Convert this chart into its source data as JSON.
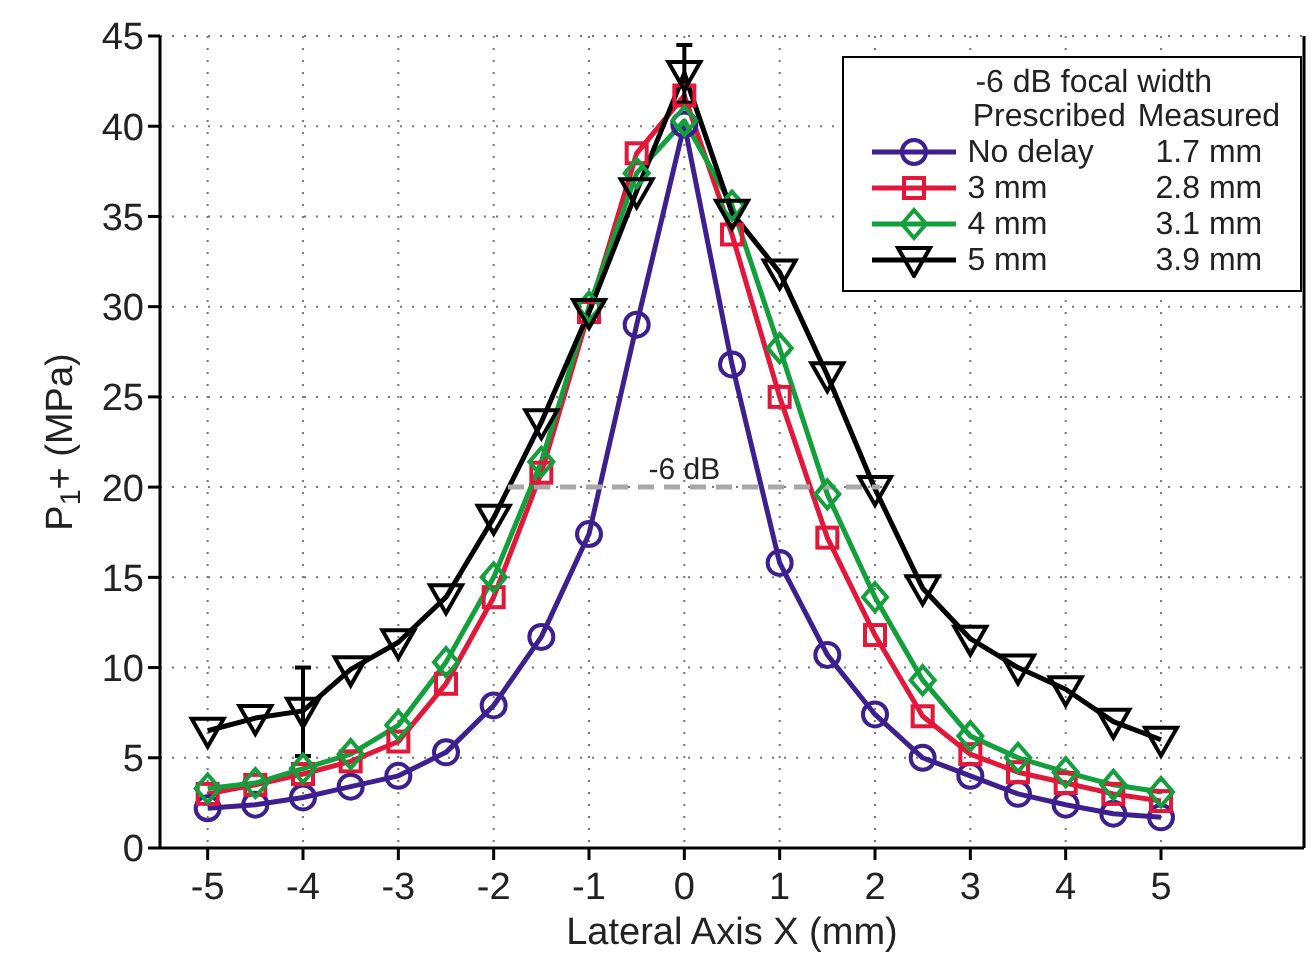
{
  "chart_data": {
    "type": "line",
    "xlabel": "Lateral Axis X (mm)",
    "ylabel": "P$_{1}$+ (MPa)",
    "legend_title": "-6 dB focal width",
    "x": [
      -5,
      -4.5,
      -4,
      -3.5,
      -3,
      -2.5,
      -2,
      -1.5,
      -1,
      -0.5,
      0,
      0.5,
      1,
      1.5,
      2,
      2.5,
      3,
      3.5,
      4,
      4.5,
      5
    ],
    "series": [
      {
        "name": "No delay",
        "color": "#3d1f8f",
        "marker": "circle",
        "values": [
          2.2,
          2.4,
          2.8,
          3.4,
          4.0,
          5.3,
          7.9,
          11.7,
          17.4,
          29.0,
          40.1,
          26.8,
          15.8,
          10.7,
          7.4,
          5.0,
          4.0,
          3.0,
          2.4,
          1.9,
          1.7
        ]
      },
      {
        "name": "3 mm",
        "color": "#e3173a",
        "marker": "square",
        "values": [
          3.0,
          3.5,
          4.1,
          4.8,
          5.9,
          9.1,
          13.9,
          20.8,
          29.7,
          38.5,
          41.7,
          34.0,
          25.0,
          17.2,
          11.8,
          7.3,
          5.2,
          4.2,
          3.6,
          3.0,
          2.6
        ]
      },
      {
        "name": "4 mm",
        "color": "#12a03c",
        "marker": "diamond",
        "values": [
          3.3,
          3.6,
          4.4,
          5.2,
          6.8,
          10.3,
          15.0,
          21.4,
          30.0,
          37.4,
          40.3,
          35.6,
          27.7,
          19.6,
          13.9,
          9.3,
          6.2,
          5.0,
          4.2,
          3.5,
          3.1
        ]
      },
      {
        "name": "5 mm",
        "color": "#000000",
        "marker": "triangle",
        "values": [
          6.5,
          7.2,
          7.6,
          9.9,
          11.4,
          13.9,
          18.3,
          23.6,
          29.7,
          36.4,
          42.9,
          35.2,
          31.9,
          26.2,
          19.9,
          14.4,
          11.6,
          10.0,
          8.8,
          7.0,
          6.0
        ],
        "errors": [
          null,
          null,
          [
            5.1,
            10.0
          ],
          null,
          null,
          null,
          null,
          null,
          null,
          null,
          [
            41.3,
            44.5
          ],
          null,
          null,
          null,
          null,
          null,
          null,
          null,
          null,
          null,
          null
        ]
      },
      {
        "type": "line",
        "color": "#a8a8a8",
        "marker": "none",
        "line_style": "dashed",
        "x": [
          -1.85,
          2.05
        ],
        "values": [
          20,
          20
        ]
      }
    ],
    "annotations": [
      {
        "text": "-6 dB",
        "x": 0,
        "y": 20
      },
      "Prescribed",
      "Measured",
      "1.7 mm",
      "2.8 mm",
      "3.1 mm",
      "3.9 mm"
    ],
    "xlim": [
      -5.5,
      6.5
    ],
    "xticks": [
      -5,
      -4,
      -3,
      -2,
      -1,
      0,
      1,
      2,
      3,
      4,
      5
    ],
    "ylim": [
      0,
      45
    ],
    "yticks": [
      0,
      5,
      10,
      15,
      20,
      25,
      30,
      35,
      40,
      45
    ],
    "grid": true,
    "legend": "top right"
  }
}
